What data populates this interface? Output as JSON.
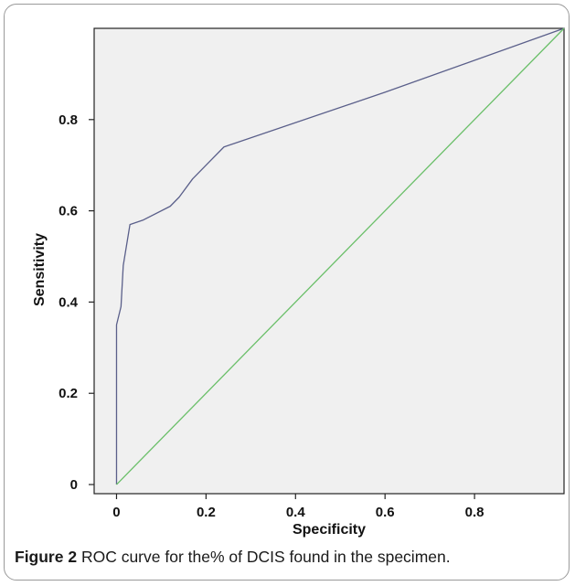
{
  "figure": {
    "label": "Figure 2",
    "caption": " ROC curve for the% of DCIS found in the specimen."
  },
  "chart_data": {
    "type": "line",
    "title": "",
    "xlabel": "Specificity",
    "ylabel": "Sensitivity",
    "xlim": [
      -0.05,
      1.0
    ],
    "ylim": [
      -0.02,
      1.0
    ],
    "xticks": [
      0,
      0.2,
      0.4,
      0.6,
      0.8
    ],
    "xtick_labels": [
      "0",
      "0.2",
      "0.4",
      "0.6",
      "0.8"
    ],
    "yticks": [
      0,
      0.2,
      0.4,
      0.6,
      0.8
    ],
    "ytick_labels": [
      "0",
      "0.2",
      "0.4",
      "0.6",
      "0.8"
    ],
    "grid": false,
    "series": [
      {
        "color": "#5a5f8a",
        "x": [
          0.0,
          0.0,
          0.005,
          0.01,
          0.015,
          0.02,
          0.03,
          0.06,
          0.12,
          0.14,
          0.17,
          0.2,
          0.24,
          0.6,
          1.0
        ],
        "y": [
          0.0,
          0.35,
          0.37,
          0.39,
          0.48,
          0.51,
          0.57,
          0.58,
          0.61,
          0.63,
          0.67,
          0.7,
          0.74,
          0.86,
          1.0
        ]
      },
      {
        "color": "#6abf69",
        "x": [
          0.0,
          1.0
        ],
        "y": [
          0.0,
          1.0
        ]
      }
    ]
  }
}
